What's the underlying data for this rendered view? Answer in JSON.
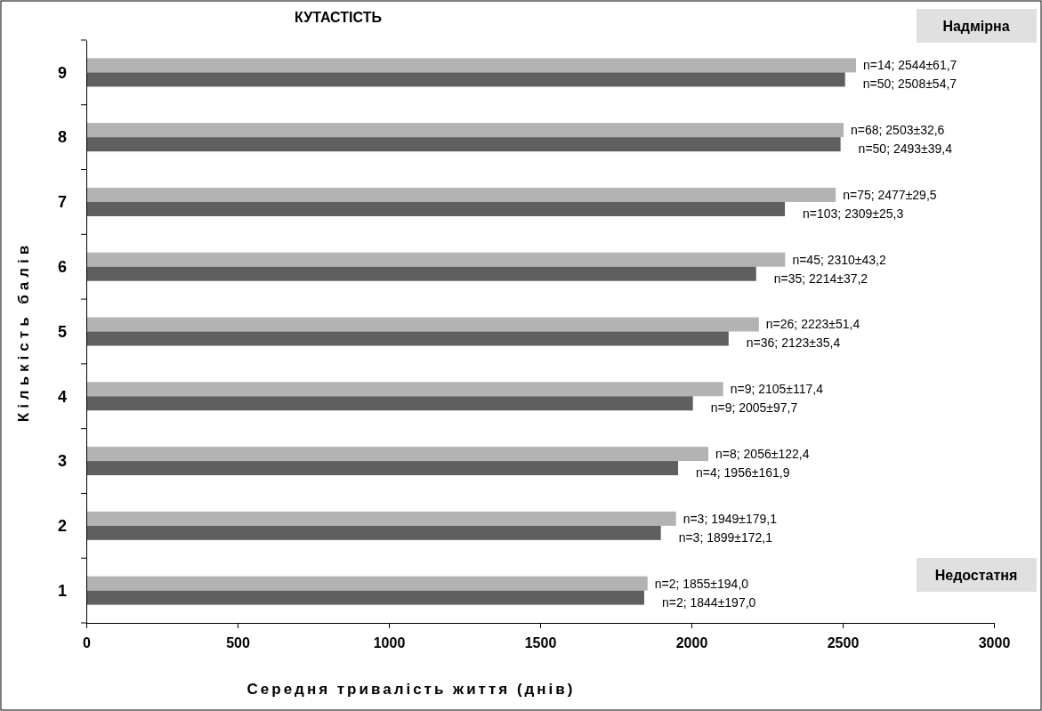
{
  "chart_data": {
    "type": "bar",
    "orientation": "horizontal",
    "title": "КУТАСТІСТЬ",
    "xlabel": "Середня тривалість життя (днів)",
    "ylabel": "Кількість балів",
    "categories": [
      "9",
      "8",
      "7",
      "6",
      "5",
      "4",
      "3",
      "2",
      "1"
    ],
    "series": [
      {
        "color": "#b3b3b3",
        "values": [
          2544,
          2503,
          2477,
          2310,
          2223,
          2105,
          2056,
          1949,
          1855
        ],
        "value_labels": [
          "n=14; 2544±61,7",
          "n=68; 2503±32,6",
          "n=75; 2477±29,5",
          "n=45; 2310±43,2",
          "n=26; 2223±51,4",
          "n=9; 2105±117,4",
          "n=8; 2056±122,4",
          "n=3; 1949±179,1",
          "n=2; 1855±194,0"
        ]
      },
      {
        "color": "#5f5f5f",
        "values": [
          2508,
          2493,
          2309,
          2214,
          2123,
          2005,
          1956,
          1899,
          1844
        ],
        "value_labels": [
          "n=50; 2508±54,7",
          "n=50; 2493±39,4",
          "n=103; 2309±25,3",
          "n=35; 2214±37,2",
          "n=36; 2123±35,4",
          "n=9; 2005±97,7",
          "n=4; 1956±161,9",
          "n=3; 1899±172,1",
          "n=2; 1844±197,0"
        ]
      }
    ],
    "xlim": [
      0,
      3000
    ],
    "xticks": [
      0,
      500,
      1000,
      1500,
      2000,
      2500,
      3000
    ],
    "grid": false,
    "annotations": [
      "Надмірна",
      "Недостатня"
    ]
  }
}
